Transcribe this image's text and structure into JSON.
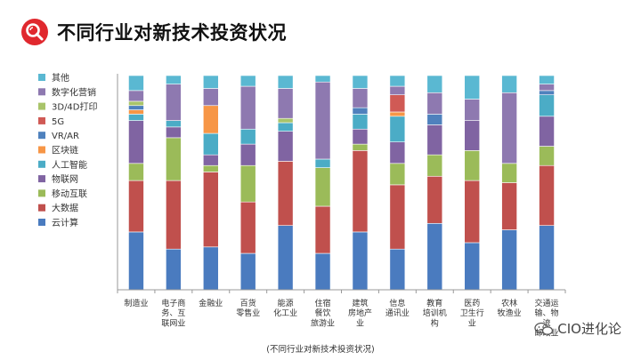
{
  "header": {
    "title": "不同行业对新技术投资状况"
  },
  "caption": "(不同行业对新技术投资状况)",
  "watermark": {
    "text": "CIO进化论"
  },
  "chart_data": {
    "type": "bar",
    "stacked": true,
    "normalized": true,
    "ylim": [
      0,
      100
    ],
    "categories": [
      [
        "制造业"
      ],
      [
        "电子商",
        "务、互",
        "联网业"
      ],
      [
        "金融业"
      ],
      [
        "百货",
        "零售业"
      ],
      [
        "能源",
        "化工业"
      ],
      [
        "住宿",
        "餐饮",
        "旅游业"
      ],
      [
        "建筑",
        "房地产",
        "业"
      ],
      [
        "信息",
        "通讯业"
      ],
      [
        "教育",
        "培训机",
        "构"
      ],
      [
        "医药",
        "卫生行",
        "业"
      ],
      [
        "农林",
        "牧渔业"
      ],
      [
        "交通运",
        "输、物",
        "流",
        "邮政业"
      ]
    ],
    "series": [
      {
        "name": "云计算",
        "color": "#4a7bbf",
        "values": [
          27,
          19,
          20,
          17,
          30,
          17,
          27,
          19,
          31,
          22,
          28,
          30
        ]
      },
      {
        "name": "大数据",
        "color": "#c0504d",
        "values": [
          24,
          32,
          35,
          24,
          30,
          22,
          38,
          30,
          22,
          29,
          22,
          28
        ]
      },
      {
        "name": "移动互联",
        "color": "#9bbb59",
        "values": [
          8,
          20,
          3,
          17,
          0,
          18,
          3,
          10,
          10,
          14,
          9,
          9
        ]
      },
      {
        "name": "物联网",
        "color": "#8064a2",
        "values": [
          20,
          5,
          5,
          10,
          14,
          0,
          7,
          10,
          14,
          14,
          0,
          14
        ]
      },
      {
        "name": "人工智能",
        "color": "#4bacc6",
        "values": [
          3,
          3,
          10,
          7,
          4,
          4,
          7,
          12,
          0,
          0,
          0,
          10
        ]
      },
      {
        "name": "区块链",
        "color": "#f79646",
        "values": [
          2,
          0,
          13,
          0,
          0,
          0,
          0,
          2,
          0,
          0,
          0,
          0
        ]
      },
      {
        "name": "VR/AR",
        "color": "#4f81bd",
        "values": [
          2,
          0,
          0,
          0,
          0,
          0,
          3,
          0,
          5,
          0,
          0,
          2
        ]
      },
      {
        "name": "5G",
        "color": "#d05a55",
        "values": [
          0,
          0,
          0,
          0,
          0,
          0,
          0,
          8,
          0,
          0,
          0,
          0
        ]
      },
      {
        "name": "3D/4D打印",
        "color": "#a9c46a",
        "values": [
          2,
          0,
          0,
          0,
          2,
          0,
          0,
          0,
          0,
          0,
          0,
          0
        ]
      },
      {
        "name": "数字化营销",
        "color": "#8e79b0",
        "values": [
          5,
          17,
          8,
          20,
          14,
          36,
          9,
          4,
          10,
          10,
          33,
          3
        ]
      },
      {
        "name": "其他",
        "color": "#5ab8d2",
        "values": [
          7,
          4,
          6,
          5,
          6,
          3,
          6,
          5,
          8,
          11,
          8,
          4
        ]
      }
    ]
  }
}
